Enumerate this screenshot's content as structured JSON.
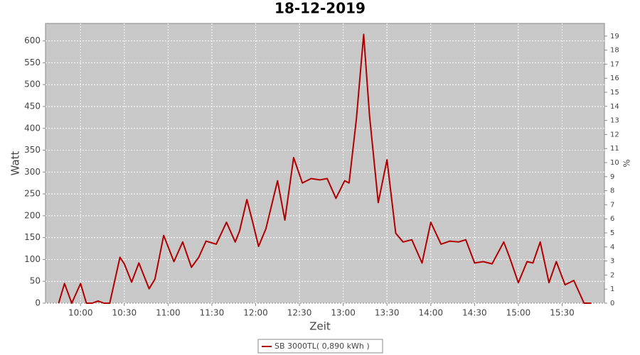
{
  "chart_data": {
    "type": "line",
    "title": "18-12-2019",
    "x_label": "Zeit",
    "y_label": "Watt",
    "y2_label": "%",
    "x": [
      "09:45",
      "09:49",
      "09:54",
      "10:00",
      "10:04",
      "10:08",
      "10:12",
      "10:16",
      "10:20",
      "10:27",
      "10:30",
      "10:35",
      "10:40",
      "10:47",
      "10:51",
      "10:57",
      "11:04",
      "11:10",
      "11:16",
      "11:21",
      "11:26",
      "11:33",
      "11:40",
      "11:46",
      "11:49",
      "11:54",
      "11:58",
      "12:02",
      "12:07",
      "12:15",
      "12:20",
      "12:26",
      "12:32",
      "12:38",
      "12:44",
      "12:49",
      "12:55",
      "13:01",
      "13:04",
      "13:09",
      "13:14",
      "13:18",
      "13:24",
      "13:30",
      "13:36",
      "13:41",
      "13:47",
      "13:54",
      "14:00",
      "14:07",
      "14:13",
      "14:19",
      "14:24",
      "14:30",
      "14:36",
      "14:42",
      "14:50",
      "14:54",
      "15:00",
      "15:06",
      "15:10",
      "15:15",
      "15:21",
      "15:26",
      "15:32",
      "15:38",
      "15:45",
      "15:50"
    ],
    "series": [
      {
        "name": "SB 3000TL( 0,890 kWh )",
        "color": "#b00000",
        "values": [
          0,
          45,
          0,
          45,
          0,
          0,
          5,
          0,
          0,
          105,
          90,
          48,
          92,
          33,
          55,
          155,
          95,
          140,
          82,
          105,
          142,
          135,
          185,
          140,
          165,
          237,
          185,
          130,
          170,
          280,
          190,
          333,
          275,
          285,
          282,
          285,
          240,
          280,
          275,
          420,
          615,
          430,
          230,
          328,
          160,
          140,
          145,
          92,
          185,
          135,
          142,
          140,
          145,
          92,
          95,
          90,
          140,
          105,
          47,
          95,
          92,
          140,
          47,
          95,
          42,
          52,
          0,
          0
        ]
      }
    ],
    "xlim": [
      "09:36",
      "15:59"
    ],
    "xticks": [
      "10:00",
      "10:30",
      "11:00",
      "11:30",
      "12:00",
      "12:30",
      "13:00",
      "13:30",
      "14:00",
      "14:30",
      "15:00",
      "15:30"
    ],
    "ylim": [
      0,
      640
    ],
    "yticks": [
      0,
      50,
      100,
      150,
      200,
      250,
      300,
      350,
      400,
      450,
      500,
      550,
      600
    ],
    "y2lim": [
      0,
      19.9
    ],
    "y2ticks": [
      0,
      1,
      2,
      3,
      4,
      5,
      6,
      7,
      8,
      9,
      10,
      11,
      12,
      13,
      14,
      15,
      16,
      17,
      18,
      19
    ],
    "grid": true,
    "legend": "bottom"
  }
}
